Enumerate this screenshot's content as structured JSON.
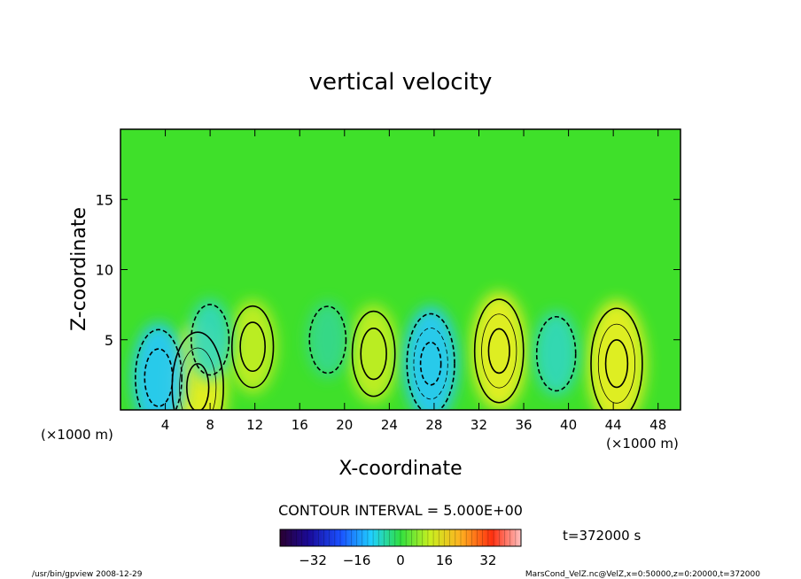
{
  "chart_data": {
    "type": "heatmap",
    "title": "vertical velocity",
    "xlabel": "X-coordinate",
    "ylabel": "Z-coordinate",
    "x_unit": "(×1000 m)",
    "y_unit": "(×1000 m)",
    "xlim": [
      0,
      50
    ],
    "ylim": [
      0,
      20
    ],
    "x_ticks": [
      4,
      8,
      12,
      16,
      20,
      24,
      28,
      32,
      36,
      40,
      44,
      48
    ],
    "y_ticks": [
      5,
      10,
      15
    ],
    "contour_interval_label": "CONTOUR INTERVAL = 5.000E+00",
    "time_label": "t=372000 s",
    "colorbar": {
      "range": [
        -44,
        44
      ],
      "ticks": [
        -32,
        -16,
        0,
        16,
        32
      ],
      "colormap": "rainbow"
    },
    "features": [
      {
        "type": "updraft",
        "x": 6.9,
        "z": 1.6,
        "value": 18
      },
      {
        "type": "updraft",
        "x": 11.8,
        "z": 4.5,
        "value": 10
      },
      {
        "type": "updraft",
        "x": 22.6,
        "z": 4.0,
        "value": 11
      },
      {
        "type": "updraft",
        "x": 33.8,
        "z": 4.2,
        "value": 16
      },
      {
        "type": "updraft",
        "x": 44.3,
        "z": 3.3,
        "value": 18
      },
      {
        "type": "downdraft",
        "x": 3.4,
        "z": 2.3,
        "value": -14
      },
      {
        "type": "downdraft",
        "x": 8.0,
        "z": 5.0,
        "value": -7
      },
      {
        "type": "downdraft",
        "x": 18.5,
        "z": 5.0,
        "value": -6
      },
      {
        "type": "downdraft",
        "x": 27.7,
        "z": 3.3,
        "value": -15
      },
      {
        "type": "downdraft",
        "x": 38.9,
        "z": 4.0,
        "value": -8
      }
    ]
  },
  "footer": {
    "left": "/usr/bin/gpview  2008-12-29",
    "right": "MarsCond_VelZ.nc@VelZ,x=0:50000,z=0:20000,t=372000"
  },
  "colors": {
    "background_field": "#3fe02a",
    "frame": "#000000"
  }
}
